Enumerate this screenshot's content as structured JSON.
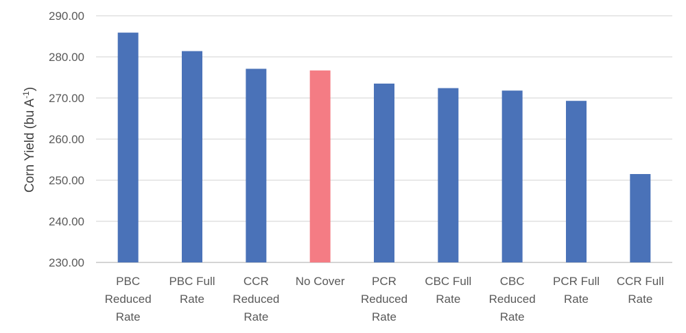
{
  "chart_data": {
    "type": "bar",
    "categories": [
      [
        "PBC",
        "Reduced",
        "Rate"
      ],
      [
        "PBC Full",
        "Rate"
      ],
      [
        "CCR",
        "Reduced",
        "Rate"
      ],
      [
        "No Cover"
      ],
      [
        "PCR",
        "Reduced",
        "Rate"
      ],
      [
        "CBC Full",
        "Rate"
      ],
      [
        "CBC",
        "Reduced",
        "Rate"
      ],
      [
        "PCR Full",
        "Rate"
      ],
      [
        "CCR Full",
        "Rate"
      ]
    ],
    "values": [
      285.9,
      281.4,
      277.1,
      276.7,
      273.5,
      272.4,
      271.8,
      269.3,
      251.5
    ],
    "colors": [
      "#4A72B8",
      "#4A72B8",
      "#4A72B8",
      "#F47C84",
      "#4A72B8",
      "#4A72B8",
      "#4A72B8",
      "#4A72B8",
      "#4A72B8"
    ],
    "ylabel": {
      "main": "Corn Yield (bu A",
      "sup": "-1",
      "tail": ")"
    },
    "ylim": [
      230,
      290
    ],
    "yticks": [
      "230.00",
      "240.00",
      "250.00",
      "260.00",
      "270.00",
      "280.00",
      "290.00"
    ],
    "grid": true,
    "gridColor": "#D9D9D9"
  }
}
